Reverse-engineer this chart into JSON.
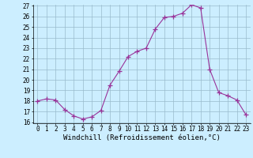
{
  "x": [
    0,
    1,
    2,
    3,
    4,
    5,
    6,
    7,
    8,
    9,
    10,
    11,
    12,
    13,
    14,
    15,
    16,
    17,
    18,
    19,
    20,
    21,
    22,
    23
  ],
  "y": [
    18,
    18.2,
    18.1,
    17.2,
    16.6,
    16.3,
    16.5,
    17.1,
    19.5,
    20.8,
    22.2,
    22.7,
    23.0,
    24.8,
    25.9,
    26.0,
    26.3,
    27.1,
    26.8,
    21.0,
    18.8,
    18.5,
    18.1,
    16.7
  ],
  "xlabel": "Windchill (Refroidissement éolien,°C)",
  "ylim": [
    16,
    27
  ],
  "xlim": [
    -0.5,
    23.5
  ],
  "yticks": [
    16,
    17,
    18,
    19,
    20,
    21,
    22,
    23,
    24,
    25,
    26,
    27
  ],
  "xticks": [
    0,
    1,
    2,
    3,
    4,
    5,
    6,
    7,
    8,
    9,
    10,
    11,
    12,
    13,
    14,
    15,
    16,
    17,
    18,
    19,
    20,
    21,
    22,
    23
  ],
  "line_color": "#993399",
  "marker": "+",
  "marker_size": 4,
  "bg_color": "#cceeff",
  "grid_color": "#99bbcc",
  "xlabel_fontsize": 6.5,
  "tick_fontsize": 5.5
}
